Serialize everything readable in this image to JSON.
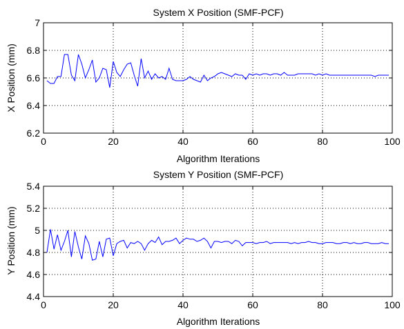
{
  "colors": {
    "background": "#ffffff",
    "axes": "#000000",
    "series": "#0000ff"
  },
  "chart_data": [
    {
      "type": "line",
      "title": "System X Position (SMF-PCF)",
      "xlabel": "Algorithm Iterations",
      "ylabel": "X Position (mm)",
      "xlim": [
        0,
        100
      ],
      "ylim": [
        6.2,
        7
      ],
      "xticks": [
        "0",
        "20",
        "40",
        "60",
        "80",
        "100"
      ],
      "yticks": [
        "6.2",
        "6.4",
        "6.6",
        "6.8",
        "7"
      ],
      "grid": true,
      "series": [
        {
          "color": "#0000ff",
          "x": [
            1,
            2,
            3,
            4,
            5,
            6,
            7,
            8,
            9,
            10,
            11,
            12,
            13,
            14,
            15,
            16,
            17,
            18,
            19,
            20,
            21,
            22,
            23,
            24,
            25,
            26,
            27,
            28,
            29,
            30,
            31,
            32,
            33,
            34,
            35,
            36,
            37,
            38,
            39,
            40,
            41,
            42,
            43,
            44,
            45,
            46,
            47,
            48,
            49,
            50,
            51,
            52,
            53,
            54,
            55,
            56,
            57,
            58,
            59,
            60,
            61,
            62,
            63,
            64,
            65,
            66,
            67,
            68,
            69,
            70,
            71,
            72,
            73,
            74,
            75,
            76,
            77,
            78,
            79,
            80,
            81,
            82,
            83,
            84,
            85,
            86,
            87,
            88,
            89,
            90,
            91,
            92,
            93,
            94,
            95,
            96,
            97,
            98,
            99
          ],
          "y": [
            6.58,
            6.56,
            6.56,
            6.61,
            6.61,
            6.77,
            6.77,
            6.62,
            6.58,
            6.77,
            6.7,
            6.6,
            6.66,
            6.73,
            6.57,
            6.6,
            6.67,
            6.66,
            6.53,
            6.72,
            6.64,
            6.61,
            6.66,
            6.7,
            6.71,
            6.62,
            6.54,
            6.74,
            6.6,
            6.65,
            6.59,
            6.63,
            6.6,
            6.61,
            6.59,
            6.67,
            6.59,
            6.58,
            6.58,
            6.58,
            6.59,
            6.61,
            6.59,
            6.58,
            6.57,
            6.62,
            6.58,
            6.6,
            6.61,
            6.63,
            6.64,
            6.63,
            6.62,
            6.61,
            6.63,
            6.62,
            6.62,
            6.59,
            6.63,
            6.62,
            6.63,
            6.62,
            6.63,
            6.63,
            6.62,
            6.63,
            6.63,
            6.62,
            6.64,
            6.62,
            6.62,
            6.62,
            6.63,
            6.63,
            6.63,
            6.63,
            6.63,
            6.62,
            6.63,
            6.62,
            6.63,
            6.62,
            6.62,
            6.62,
            6.62,
            6.62,
            6.62,
            6.62,
            6.62,
            6.62,
            6.62,
            6.62,
            6.62,
            6.62,
            6.61,
            6.62,
            6.62,
            6.62,
            6.62
          ]
        }
      ]
    },
    {
      "type": "line",
      "title": "System Y Position (SMF-PCF)",
      "xlabel": "Algorithm Iterations",
      "ylabel": "Y Position (mm)",
      "xlim": [
        0,
        100
      ],
      "ylim": [
        4.4,
        5.4
      ],
      "xticks": [
        "0",
        "20",
        "40",
        "60",
        "80",
        "100"
      ],
      "yticks": [
        "4.4",
        "4.6",
        "4.8",
        "5",
        "5.2",
        "5.4"
      ],
      "grid": true,
      "series": [
        {
          "color": "#0000ff",
          "x": [
            1,
            2,
            3,
            4,
            5,
            6,
            7,
            8,
            9,
            10,
            11,
            12,
            13,
            14,
            15,
            16,
            17,
            18,
            19,
            20,
            21,
            22,
            23,
            24,
            25,
            26,
            27,
            28,
            29,
            30,
            31,
            32,
            33,
            34,
            35,
            36,
            37,
            38,
            39,
            40,
            41,
            42,
            43,
            44,
            45,
            46,
            47,
            48,
            49,
            50,
            51,
            52,
            53,
            54,
            55,
            56,
            57,
            58,
            59,
            60,
            61,
            62,
            63,
            64,
            65,
            66,
            67,
            68,
            69,
            70,
            71,
            72,
            73,
            74,
            75,
            76,
            77,
            78,
            79,
            80,
            81,
            82,
            83,
            84,
            85,
            86,
            87,
            88,
            89,
            90,
            91,
            92,
            93,
            94,
            95,
            96,
            97,
            98,
            99
          ],
          "y": [
            4.8,
            5.01,
            4.83,
            4.96,
            4.82,
            4.9,
            5.0,
            4.76,
            4.99,
            4.85,
            4.74,
            4.95,
            4.88,
            4.73,
            4.74,
            4.9,
            4.76,
            4.92,
            4.93,
            4.77,
            4.88,
            4.9,
            4.91,
            4.84,
            4.89,
            4.88,
            4.9,
            4.88,
            4.82,
            4.88,
            4.91,
            4.89,
            4.94,
            4.87,
            4.9,
            4.9,
            4.91,
            4.93,
            4.88,
            4.91,
            4.93,
            4.92,
            4.92,
            4.9,
            4.91,
            4.93,
            4.9,
            4.84,
            4.9,
            4.9,
            4.89,
            4.9,
            4.9,
            4.88,
            4.91,
            4.9,
            4.86,
            4.89,
            4.89,
            4.89,
            4.88,
            4.89,
            4.89,
            4.9,
            4.88,
            4.89,
            4.89,
            4.89,
            4.89,
            4.89,
            4.88,
            4.89,
            4.88,
            4.89,
            4.89,
            4.9,
            4.89,
            4.89,
            4.88,
            4.88,
            4.89,
            4.89,
            4.89,
            4.88,
            4.88,
            4.89,
            4.89,
            4.88,
            4.89,
            4.88,
            4.88,
            4.89,
            4.89,
            4.88,
            4.88,
            4.88,
            4.89,
            4.88,
            4.88
          ]
        }
      ]
    }
  ]
}
